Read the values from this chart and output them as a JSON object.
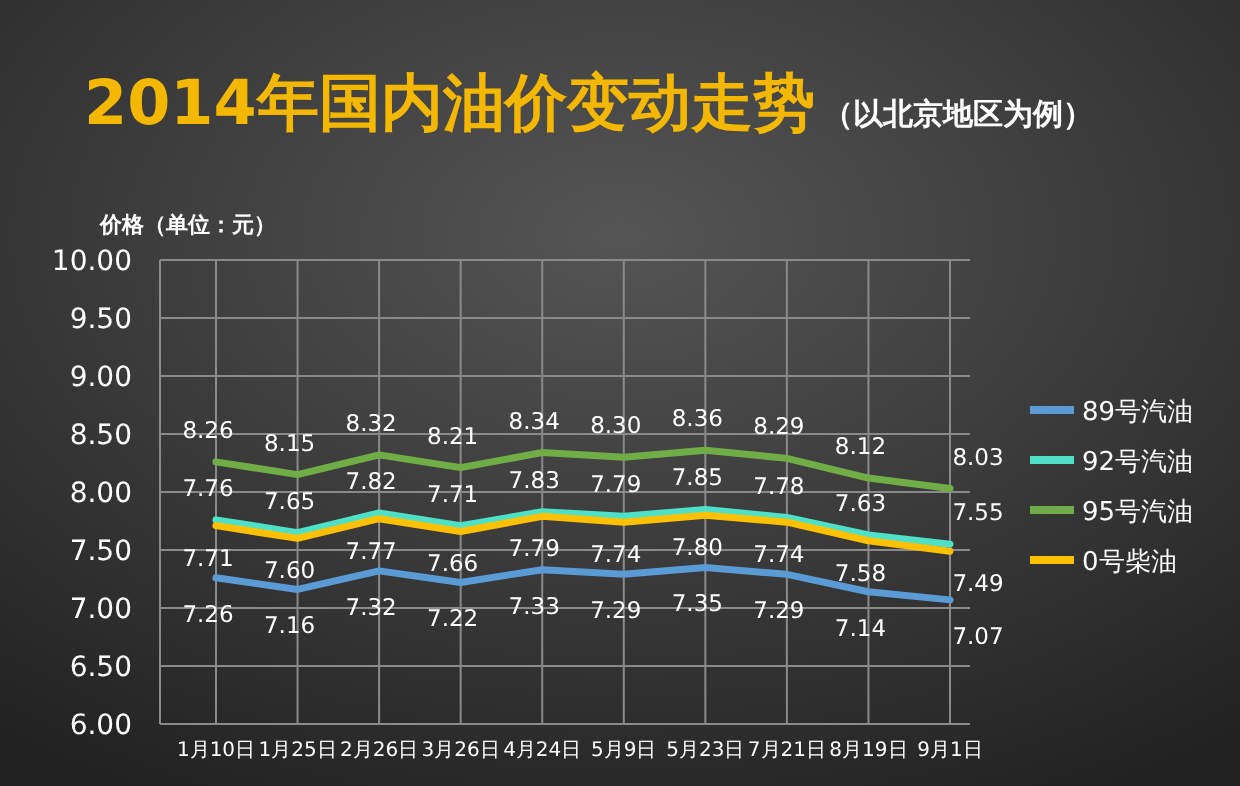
{
  "chart_data": {
    "type": "line",
    "title": "2014年国内油价变动走势",
    "subtitle": "（以北京地区为例）",
    "ylabel": "价格（单位：元）",
    "categories": [
      "1月10日",
      "1月25日",
      "2月26日",
      "3月26日",
      "4月24日",
      "5月9日",
      "5月23日",
      "7月21日",
      "8月19日",
      "9月1日"
    ],
    "series": [
      {
        "name": "89号汽油",
        "color": "#5b9bd5",
        "values": [
          7.26,
          7.16,
          7.32,
          7.22,
          7.33,
          7.29,
          7.35,
          7.29,
          7.14,
          7.07
        ],
        "value_labels": [
          "7.26",
          "7.16",
          "7.32",
          "7.22",
          "7.33",
          "7.29",
          "7.35",
          "7.29",
          "7.14",
          "7.07"
        ]
      },
      {
        "name": "92号汽油",
        "color": "#4fe0c8",
        "values": [
          7.76,
          7.65,
          7.82,
          7.71,
          7.83,
          7.79,
          7.85,
          7.78,
          7.63,
          7.55
        ],
        "value_labels": [
          "7.76",
          "7.65",
          "7.82",
          "7.71",
          "7.83",
          "7.79",
          "7.85",
          "7.78",
          "7.63",
          "7.55"
        ]
      },
      {
        "name": "95号汽油",
        "color": "#70ad47",
        "values": [
          8.26,
          8.15,
          8.32,
          8.21,
          8.34,
          8.3,
          8.36,
          8.29,
          8.12,
          8.03
        ],
        "value_labels": [
          "8.26",
          "8.15",
          "8.32",
          "8.21",
          "8.34",
          "8.30",
          "8.36",
          "8.29",
          "8.12",
          "8.03"
        ]
      },
      {
        "name": "0号柴油",
        "color": "#ffc000",
        "values": [
          7.71,
          7.6,
          7.77,
          7.66,
          7.79,
          7.74,
          7.8,
          7.74,
          7.58,
          7.49
        ],
        "value_labels": [
          "7.71",
          "7.60",
          "7.77",
          "7.66",
          "7.79",
          "7.74",
          "7.80",
          "7.74",
          "7.58",
          "7.49"
        ]
      }
    ],
    "ylim": [
      6,
      10
    ],
    "yticks": [
      {
        "value": 6,
        "label": "6.00"
      },
      {
        "value": 6.5,
        "label": "6.50"
      },
      {
        "value": 7,
        "label": "7.00"
      },
      {
        "value": 7.5,
        "label": "7.50"
      },
      {
        "value": 8,
        "label": "8.00"
      },
      {
        "value": 8.5,
        "label": "8.50"
      },
      {
        "value": 9,
        "label": "9.00"
      },
      {
        "value": 9.5,
        "label": "9.50"
      },
      {
        "value": 10,
        "label": "10.00"
      }
    ],
    "grid": true,
    "legend": "right",
    "marker": "none",
    "line_style": "solid"
  }
}
